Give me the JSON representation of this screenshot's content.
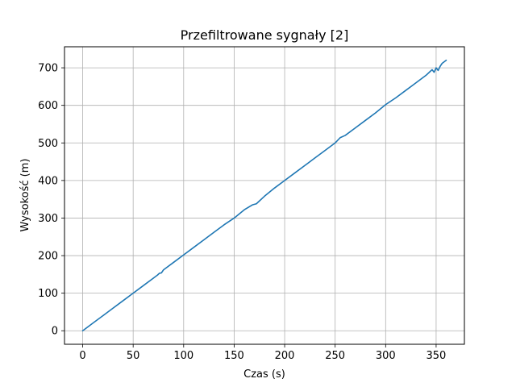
{
  "chart_data": {
    "type": "line",
    "title": "Przefiltrowane sygnały [2]",
    "xlabel": "Czas (s)",
    "ylabel": "Wysokość (m)",
    "xlim": [
      -18,
      378
    ],
    "ylim": [
      -36,
      756
    ],
    "grid": true,
    "xticks": [
      0,
      50,
      100,
      150,
      200,
      250,
      300,
      350
    ],
    "yticks": [
      0,
      100,
      200,
      300,
      400,
      500,
      600,
      700
    ],
    "series_color": "#1f77b4",
    "series": [
      {
        "x": [
          0,
          10,
          20,
          30,
          40,
          50,
          60,
          70,
          74,
          76,
          78,
          80,
          90,
          100,
          110,
          120,
          130,
          140,
          150,
          160,
          168,
          172,
          180,
          190,
          200,
          210,
          220,
          230,
          240,
          250,
          255,
          260,
          270,
          280,
          290,
          300,
          310,
          320,
          330,
          340,
          344,
          346,
          348,
          350,
          352,
          354,
          356,
          358,
          360
        ],
        "y": [
          0,
          20,
          40,
          60,
          80,
          100,
          120,
          140,
          148,
          153,
          154,
          162,
          182,
          202,
          222,
          242,
          262,
          282,
          300,
          322,
          335,
          338,
          358,
          380,
          400,
          420,
          440,
          460,
          480,
          500,
          514,
          520,
          540,
          560,
          580,
          602,
          620,
          640,
          660,
          680,
          690,
          695,
          688,
          700,
          693,
          704,
          712,
          716,
          720
        ]
      }
    ]
  }
}
